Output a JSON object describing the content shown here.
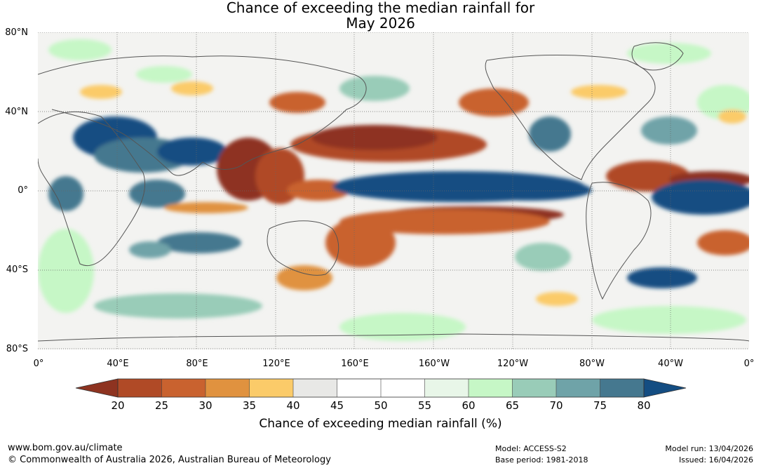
{
  "title": {
    "line1": "Chance of exceeding the median rainfall for",
    "line2": "May 2026"
  },
  "map": {
    "lat_labels": [
      "80°N",
      "40°N",
      "0°",
      "40°S",
      "80°S"
    ],
    "lon_labels": [
      "0°",
      "40°E",
      "80°E",
      "120°E",
      "160°E",
      "160°W",
      "120°W",
      "80°W",
      "40°W",
      "0°"
    ]
  },
  "colorbar": {
    "ticks": [
      "20",
      "25",
      "30",
      "35",
      "40",
      "45",
      "50",
      "55",
      "60",
      "65",
      "70",
      "75",
      "80"
    ],
    "colors": {
      "below_20": "#8e3320",
      "c20_25": "#b04a26",
      "c25_30": "#c9622f",
      "c30_35": "#e0923f",
      "c35_40": "#fbcb69",
      "c40_45": "#e8e8e6",
      "c45_50": "#ffffff",
      "c50_55": "#ffffff",
      "c55_60": "#e8f6e8",
      "c60_65": "#c6f7c6",
      "c65_70": "#99ccb8",
      "c70_75": "#6fa3a8",
      "c75_80": "#45788f",
      "above_80": "#144d82"
    },
    "title": "Chance of exceeding median rainfall (%)"
  },
  "footer": {
    "website": "www.bom.gov.au/climate",
    "copyright": "© Commonwealth of Australia 2026, Australian Bureau of Meteorology",
    "model": "Model: ACCESS-S2",
    "base_period": "Base period: 1981-2018",
    "model_run": "Model run: 13/04/2026",
    "issued": "Issued: 16/04/2026"
  }
}
